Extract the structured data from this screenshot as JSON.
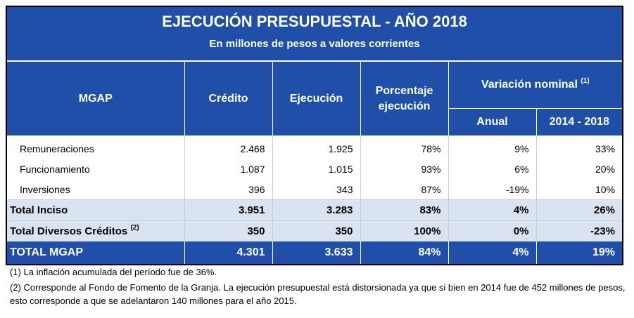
{
  "title": "EJECUCIÓN PRESUPUESTAL - AÑO 2018",
  "subtitle": "En millones de pesos a valores corrientes",
  "headers": {
    "mgap": "MGAP",
    "credito": "Crédito",
    "ejecucion": "Ejecución",
    "porcentaje": "Porcentaje ejecución",
    "variacion": "Variación nominal",
    "variacion_note": "(1)",
    "anual": "Anual",
    "periodo": "2014 - 2018"
  },
  "rows": [
    {
      "label": "Remuneraciones",
      "credito": "2.468",
      "ejecucion": "1.925",
      "porcentaje": "78%",
      "anual": "9%",
      "periodo": "33%"
    },
    {
      "label": "Funcionamiento",
      "credito": "1.087",
      "ejecucion": "1.015",
      "porcentaje": "93%",
      "anual": "6%",
      "periodo": "20%"
    },
    {
      "label": "Inversiones",
      "credito": "396",
      "ejecucion": "343",
      "porcentaje": "87%",
      "anual": "-19%",
      "periodo": "10%"
    }
  ],
  "total_inciso": {
    "label": "Total Inciso",
    "credito": "3.951",
    "ejecucion": "3.283",
    "porcentaje": "83%",
    "anual": "4%",
    "periodo": "26%"
  },
  "total_diversos": {
    "label": "Total Diversos Créditos",
    "note": "(2)",
    "credito": "350",
    "ejecucion": "350",
    "porcentaje": "100%",
    "anual": "0%",
    "periodo": "-23%"
  },
  "total_mgap": {
    "label": "TOTAL MGAP",
    "credito": "4.301",
    "ejecucion": "3.633",
    "porcentaje": "84%",
    "anual": "4%",
    "periodo": "19%"
  },
  "notes": [
    "(1) La inflación acumulada del período fue de 36%.",
    "(2) Corresponde al Fondo de Fomento de la Granja. La ejecución presupuestal está distorsionada ya que si bien en 2014 fue de 452 millones de pesos, esto corresponde a que se adelantaron 140 millones para el año 2015."
  ],
  "colors": {
    "header_blue": "#1f4fa8",
    "total_row": "#dae3f0"
  }
}
